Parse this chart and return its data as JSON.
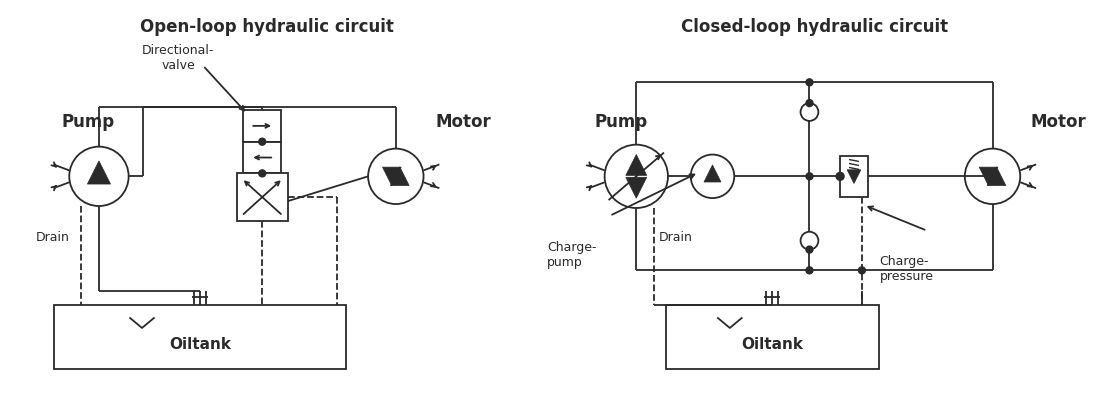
{
  "bg_color": "#ffffff",
  "line_color": "#2a2a2a",
  "title_left": "Open-loop hydraulic circuit",
  "title_right": "Closed-loop hydraulic circuit",
  "label_pump_left": "Pump",
  "label_motor_left": "Motor",
  "label_drain_left": "Drain",
  "label_oiltank_left": "Oiltank",
  "label_dvalve": "Directional-\nvalve",
  "label_pump_right": "Pump",
  "label_motor_right": "Motor",
  "label_charge_pump": "Charge-\npump",
  "label_drain_right": "Drain",
  "label_oiltank_right": "Oiltank",
  "label_charge_pressure": "Charge-\npressure",
  "fig_width": 10.95,
  "fig_height": 4.16,
  "dpi": 100
}
